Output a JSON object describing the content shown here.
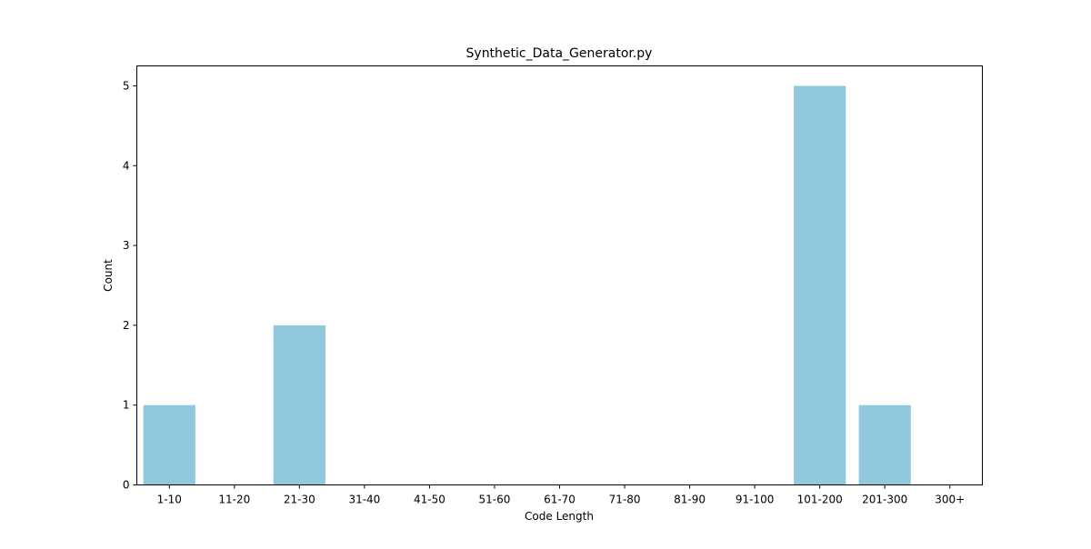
{
  "chart_data": {
    "type": "bar",
    "title": "Synthetic_Data_Generator.py",
    "xlabel": "Code Length",
    "ylabel": "Count",
    "categories": [
      "1-10",
      "11-20",
      "21-30",
      "31-40",
      "41-50",
      "51-60",
      "61-70",
      "71-80",
      "81-90",
      "91-100",
      "101-200",
      "201-300",
      "300+"
    ],
    "values": [
      1,
      0,
      2,
      0,
      0,
      0,
      0,
      0,
      0,
      0,
      5,
      1,
      0
    ],
    "ylim": [
      0,
      5.25
    ],
    "yticks": [
      0,
      1,
      2,
      3,
      4,
      5
    ],
    "grid": false,
    "legend": "none",
    "bar_color": "#92c8dd"
  }
}
